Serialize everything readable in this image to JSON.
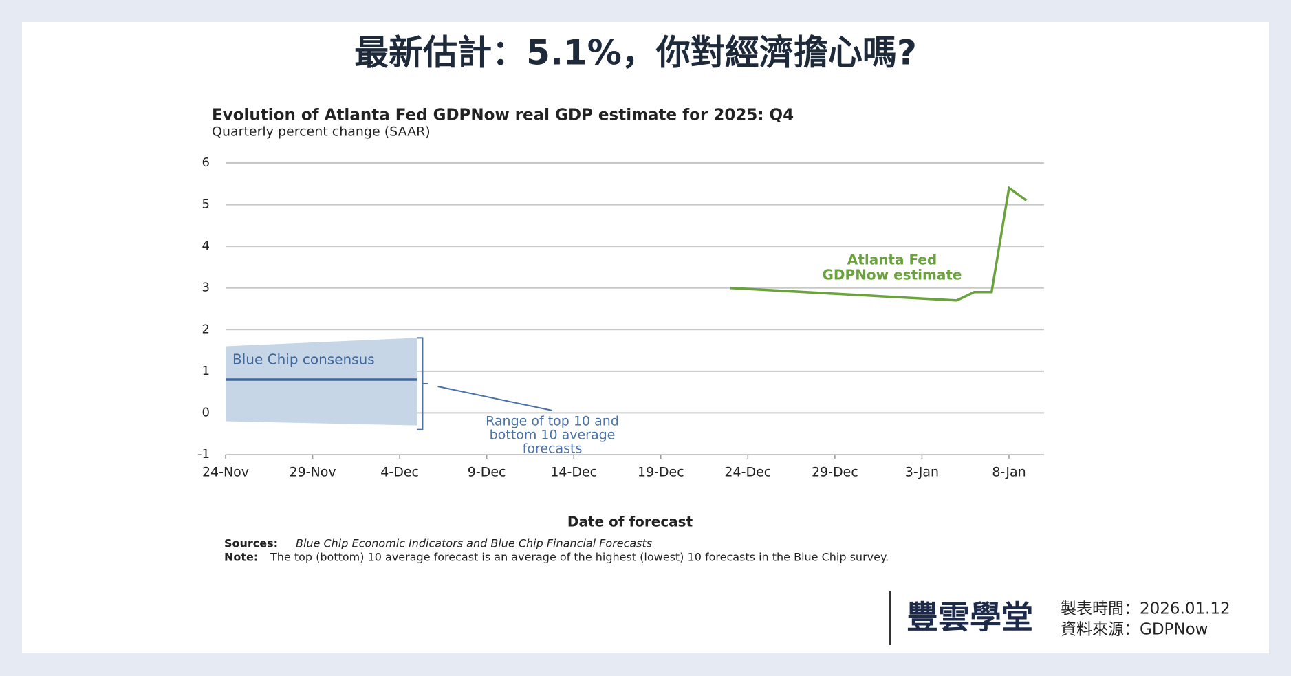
{
  "header": {
    "title": "最新估計：5.1%，你對經濟擔心嗎?"
  },
  "chart_data": {
    "type": "line",
    "title": "Evolution of Atlanta Fed GDPNow real GDP estimate for 2025: Q4",
    "subtitle": "Quarterly percent change (SAAR)",
    "x_label": "Date of forecast",
    "xticks": [
      "24-Nov",
      "29-Nov",
      "4-Dec",
      "9-Dec",
      "14-Dec",
      "19-Dec",
      "24-Dec",
      "29-Dec",
      "3-Jan",
      "8-Jan"
    ],
    "ylim": [
      -1,
      6
    ],
    "yticks": [
      -1,
      0,
      1,
      2,
      3,
      4,
      5,
      6
    ],
    "grid": true,
    "series": [
      {
        "name": "Atlanta Fed GDPNow estimate",
        "name_lines": [
          "Atlanta Fed",
          "GDPNow estimate"
        ],
        "color": "#6aa33c",
        "x": [
          "23-Dec",
          "5-Jan",
          "6-Jan",
          "7-Jan",
          "8-Jan",
          "9-Jan"
        ],
        "values": [
          3.0,
          2.7,
          2.9,
          2.9,
          5.4,
          5.1
        ]
      },
      {
        "name": "Blue Chip consensus",
        "color": "#3f679c",
        "x": [
          "24-Nov",
          "5-Dec"
        ],
        "values": [
          0.8,
          0.8
        ]
      }
    ],
    "band": {
      "name_lines": [
        "Range of top 10 and",
        "bottom 10 average",
        "forecasts"
      ],
      "color": "#c6d6e6",
      "x": [
        "24-Nov",
        "5-Dec"
      ],
      "high": [
        1.6,
        1.8
      ],
      "low": [
        -0.2,
        -0.3
      ]
    },
    "sources": {
      "label": "Sources:",
      "text": "Blue Chip Economic Indicators and Blue Chip Financial Forecasts"
    },
    "note": {
      "label": "Note:",
      "text": "The top (bottom) 10 average forecast is an average of the highest (lowest) 10 forecasts in the Blue Chip survey."
    }
  },
  "footer": {
    "brand": "豐雲學堂",
    "made": "製表時間：2026.01.12",
    "source": "資料來源：GDPNow"
  }
}
